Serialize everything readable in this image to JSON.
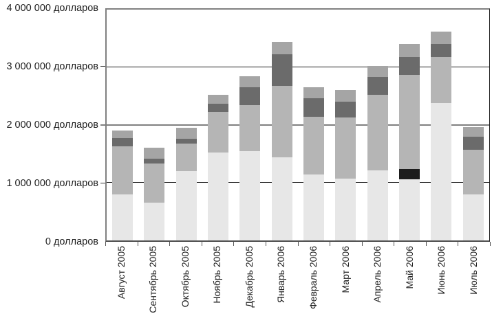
{
  "chart_data": {
    "type": "bar",
    "stacked": true,
    "title": "",
    "xlabel": "",
    "ylabel": "",
    "legend": false,
    "grid": true,
    "ylim": [
      0,
      4000000
    ],
    "currency_unit": "долларов",
    "y_ticks": [
      {
        "value": 0,
        "label": "0 долларов"
      },
      {
        "value": 1000000,
        "label": "1 000 000 долларов"
      },
      {
        "value": 2000000,
        "label": "2 000 000 долларов"
      },
      {
        "value": 3000000,
        "label": "3 000 000 долларов"
      },
      {
        "value": 4000000,
        "label": "4 000 000 долларов"
      }
    ],
    "categories": [
      "Август 2005",
      "Сентябрь 2005",
      "Октябрь 2005",
      "Ноябрь 2005",
      "Декабрь 2005",
      "Январь 2006",
      "Февраль 2006",
      "Март 2006",
      "Апрель 2006",
      "Май 2006",
      "Июнь 2006",
      "Июль 2006"
    ],
    "series": [
      {
        "name": "series-1-light-gray",
        "color": "#e7e7e7",
        "values": [
          800000,
          660000,
          1200000,
          1520000,
          1550000,
          1440000,
          1140000,
          1070000,
          1210000,
          1060000,
          2380000,
          800000
        ]
      },
      {
        "name": "series-2-black",
        "color": "#1c1c1c",
        "values": [
          0,
          0,
          0,
          0,
          0,
          0,
          0,
          0,
          0,
          180000,
          0,
          0
        ]
      },
      {
        "name": "series-3-medium-gray",
        "color": "#b5b5b5",
        "values": [
          830000,
          670000,
          480000,
          710000,
          790000,
          1240000,
          1000000,
          1060000,
          1310000,
          1630000,
          800000,
          770000
        ]
      },
      {
        "name": "series-4-dark-gray",
        "color": "#6b6b6b",
        "values": [
          140000,
          90000,
          80000,
          140000,
          310000,
          550000,
          320000,
          280000,
          310000,
          310000,
          230000,
          230000
        ]
      },
      {
        "name": "series-5-silver",
        "color": "#a5a5a5",
        "values": [
          130000,
          190000,
          190000,
          150000,
          200000,
          210000,
          190000,
          200000,
          190000,
          230000,
          210000,
          160000
        ]
      }
    ],
    "totals": [
      1900000,
      1610000,
      1950000,
      2520000,
      2850000,
      3440000,
      2650000,
      2610000,
      3020000,
      3410000,
      3620000,
      1960000
    ],
    "colors": {
      "frame": "#808080",
      "axis_bottom": "#4d4d4d",
      "gridline": "#1a1a1a",
      "gridline_2m": "#808080",
      "text": "#1f1f1f",
      "background": "#ffffff"
    }
  }
}
